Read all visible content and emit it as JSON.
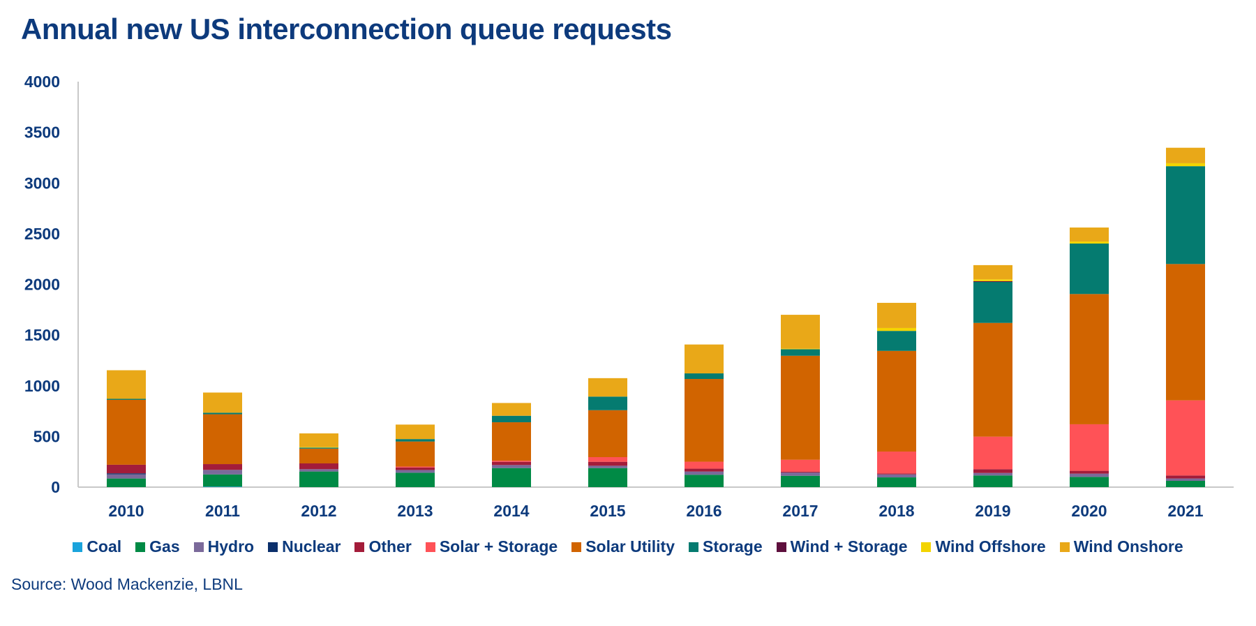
{
  "chart_data": {
    "type": "bar",
    "stacked": true,
    "title": "Annual new US interconnection queue requests",
    "xlabel": "",
    "ylabel": "",
    "ylim": [
      0,
      4000
    ],
    "yticks": [
      0,
      500,
      1000,
      1500,
      2000,
      2500,
      3000,
      3500,
      4000
    ],
    "grid": false,
    "legend_position": "bottom",
    "categories": [
      "2010",
      "2011",
      "2012",
      "2013",
      "2014",
      "2015",
      "2016",
      "2017",
      "2018",
      "2019",
      "2020",
      "2021"
    ],
    "series": [
      {
        "name": "Coal",
        "color": "#1aa3dc",
        "values": [
          0,
          5,
          0,
          0,
          0,
          0,
          0,
          0,
          0,
          0,
          0,
          0
        ]
      },
      {
        "name": "Gas",
        "color": "#008a45",
        "values": [
          85,
          120,
          154,
          142,
          188,
          188,
          122,
          112,
          96,
          115,
          101,
          62
        ]
      },
      {
        "name": "Hydro",
        "color": "#7b6a9a",
        "values": [
          41,
          45,
          23,
          27,
          30,
          23,
          32,
          32,
          30,
          25,
          32,
          23
        ]
      },
      {
        "name": "Nuclear",
        "color": "#0b2f6b",
        "values": [
          10,
          0,
          0,
          0,
          0,
          0,
          0,
          0,
          0,
          0,
          0,
          0
        ]
      },
      {
        "name": "Other",
        "color": "#a31c3a",
        "values": [
          85,
          57,
          57,
          25,
          32,
          39,
          28,
          9,
          9,
          37,
          28,
          30
        ]
      },
      {
        "name": "Solar + Storage",
        "color": "#ff5257",
        "values": [
          0,
          0,
          0,
          9,
          11,
          46,
          69,
          117,
          216,
          321,
          459,
          741
        ]
      },
      {
        "name": "Solar Utility",
        "color": "#d16400",
        "values": [
          640,
          492,
          146,
          247,
          379,
          463,
          816,
          1026,
          993,
          1122,
          1285,
          1345
        ]
      },
      {
        "name": "Storage",
        "color": "#057b70",
        "values": [
          10,
          15,
          10,
          24,
          64,
          134,
          55,
          64,
          197,
          404,
          498,
          965
        ]
      },
      {
        "name": "Wind + Storage",
        "color": "#5e0f3d",
        "values": [
          0,
          0,
          0,
          0,
          0,
          0,
          0,
          0,
          0,
          8,
          0,
          0
        ]
      },
      {
        "name": "Wind Offshore",
        "color": "#f3d400",
        "values": [
          0,
          0,
          5,
          0,
          0,
          0,
          0,
          5,
          29,
          18,
          20,
          29
        ]
      },
      {
        "name": "Wind Onshore",
        "color": "#e9a818",
        "values": [
          282,
          199,
          135,
          143,
          126,
          182,
          285,
          335,
          248,
          140,
          138,
          153
        ]
      }
    ]
  },
  "source": "Source: Wood Mackenzie, LBNL"
}
